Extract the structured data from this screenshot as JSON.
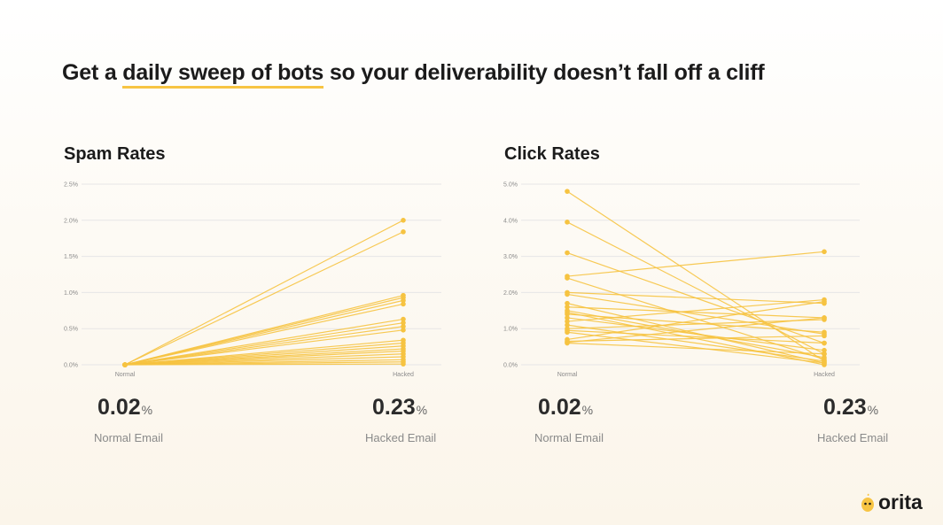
{
  "headline": {
    "before": "Get a",
    "highlight": "daily sweep of bots",
    "after": "so your deliverability doesn’t fall off a cliff"
  },
  "colors": {
    "accent": "#f7c443",
    "line": "#f6c341",
    "grid": "#e6e6e6"
  },
  "panels": [
    {
      "title": "Spam Rates",
      "normal_value": "0.02",
      "normal_unit": "%",
      "normal_label": "Normal Email",
      "hacked_value": "0.23",
      "hacked_unit": "%",
      "hacked_label": "Hacked Email"
    },
    {
      "title": "Click Rates",
      "normal_value": "0.02",
      "normal_unit": "%",
      "normal_label": "Normal Email",
      "hacked_value": "0.23",
      "hacked_unit": "%",
      "hacked_label": "Hacked Email"
    }
  ],
  "chart_data": [
    {
      "type": "line",
      "title": "Spam Rates",
      "x": [
        "Normal",
        "Hacked"
      ],
      "y_ticks": [
        "0.0%",
        "0.5%",
        "1.0%",
        "1.5%",
        "2.0%",
        "2.5%"
      ],
      "ylim": [
        0,
        2.5
      ],
      "grid": true,
      "series": [
        {
          "values": [
            0,
            2.0
          ]
        },
        {
          "values": [
            0,
            1.84
          ]
        },
        {
          "values": [
            0,
            0.96
          ]
        },
        {
          "values": [
            0,
            0.93
          ]
        },
        {
          "values": [
            0,
            0.89
          ]
        },
        {
          "values": [
            0,
            0.84
          ]
        },
        {
          "values": [
            0,
            0.63
          ]
        },
        {
          "values": [
            0,
            0.58
          ]
        },
        {
          "values": [
            0,
            0.53
          ]
        },
        {
          "values": [
            0,
            0.48
          ]
        },
        {
          "values": [
            0,
            0.34
          ]
        },
        {
          "values": [
            0,
            0.3
          ]
        },
        {
          "values": [
            0,
            0.26
          ]
        },
        {
          "values": [
            0,
            0.22
          ]
        },
        {
          "values": [
            0,
            0.19
          ]
        },
        {
          "values": [
            0,
            0.15
          ]
        },
        {
          "values": [
            0,
            0.11
          ]
        },
        {
          "values": [
            0,
            0.07
          ]
        },
        {
          "values": [
            0,
            0.04
          ]
        },
        {
          "values": [
            0,
            0.01
          ]
        }
      ]
    },
    {
      "type": "line",
      "title": "Click Rates",
      "x": [
        "Normal",
        "Hacked"
      ],
      "y_ticks": [
        "0.0%",
        "1.0%",
        "2.0%",
        "3.0%",
        "4.0%",
        "5.0%"
      ],
      "ylim": [
        0,
        5.0
      ],
      "grid": true,
      "series": [
        {
          "values": [
            4.8,
            0.1
          ]
        },
        {
          "values": [
            3.95,
            0.3
          ]
        },
        {
          "values": [
            3.1,
            0.6
          ]
        },
        {
          "values": [
            2.45,
            3.13
          ]
        },
        {
          "values": [
            2.4,
            0.15
          ]
        },
        {
          "values": [
            2.0,
            1.7
          ]
        },
        {
          "values": [
            1.95,
            0.85
          ]
        },
        {
          "values": [
            1.7,
            0.05
          ]
        },
        {
          "values": [
            1.6,
            1.3
          ]
        },
        {
          "values": [
            1.5,
            0.2
          ]
        },
        {
          "values": [
            1.4,
            0.9
          ]
        },
        {
          "values": [
            1.3,
            0.4
          ]
        },
        {
          "values": [
            1.2,
            1.8
          ]
        },
        {
          "values": [
            1.1,
            0.1
          ]
        },
        {
          "values": [
            1.0,
            1.25
          ]
        },
        {
          "values": [
            0.95,
            0.6
          ]
        },
        {
          "values": [
            0.9,
            0.05
          ]
        },
        {
          "values": [
            0.7,
            1.75
          ]
        },
        {
          "values": [
            0.65,
            0.8
          ]
        },
        {
          "values": [
            0.6,
            0.3
          ]
        },
        {
          "values": [
            0.62,
            1.3
          ]
        },
        {
          "values": [
            1.45,
            0.0
          ]
        }
      ]
    }
  ]
}
